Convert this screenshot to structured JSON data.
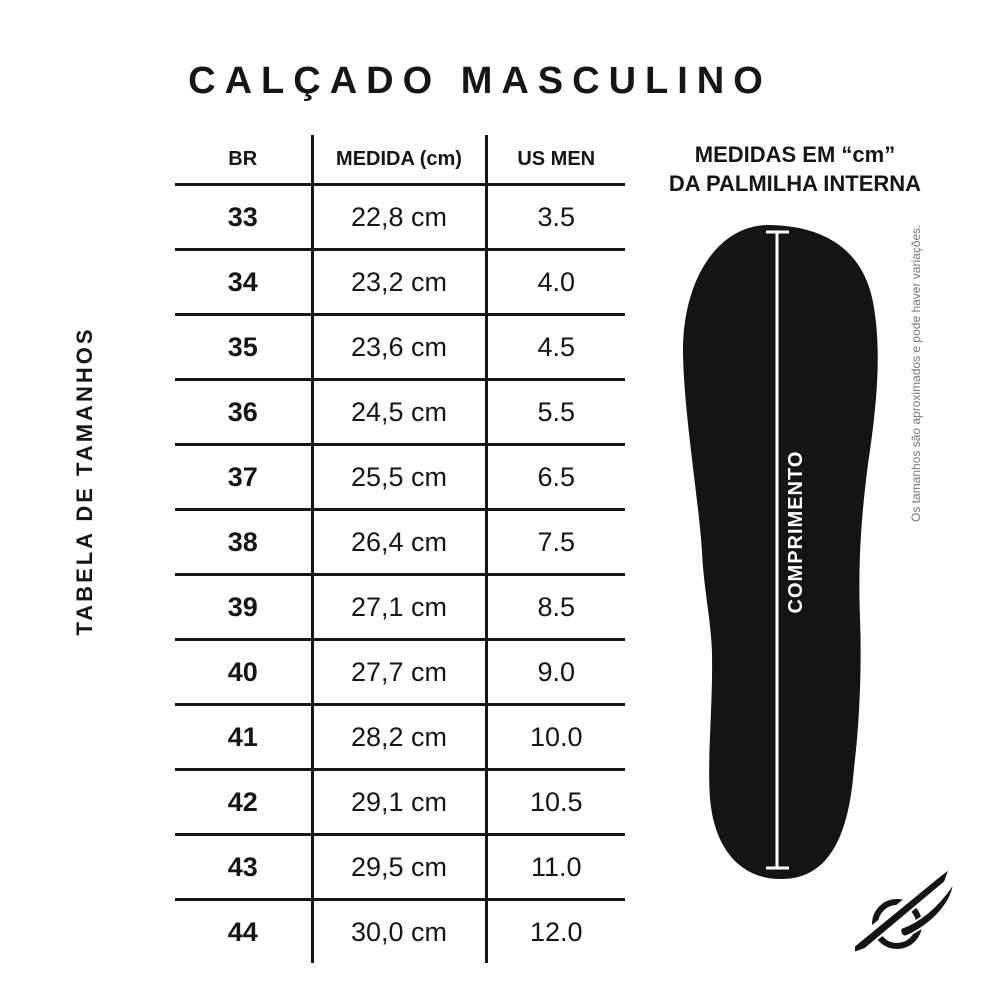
{
  "colors": {
    "ink": "#161616",
    "insole_black": "#141414",
    "note_gray": "#777777",
    "background": "#ffffff"
  },
  "title": "CALÇADO MASCULINO",
  "side_label": "TABELA DE TAMANHOS",
  "chart_data": {
    "type": "table",
    "title": "CALÇADO MASCULINO",
    "columns": [
      "BR",
      "MEDIDA (cm)",
      "US MEN"
    ],
    "rows": [
      [
        "33",
        "22,8 cm",
        "3.5"
      ],
      [
        "34",
        "23,2 cm",
        "4.0"
      ],
      [
        "35",
        "23,6 cm",
        "4.5"
      ],
      [
        "36",
        "24,5 cm",
        "5.5"
      ],
      [
        "37",
        "25,5 cm",
        "6.5"
      ],
      [
        "38",
        "26,4 cm",
        "7.5"
      ],
      [
        "39",
        "27,1 cm",
        "8.5"
      ],
      [
        "40",
        "27,7 cm",
        "9.0"
      ],
      [
        "41",
        "28,2 cm",
        "10.0"
      ],
      [
        "42",
        "29,1 cm",
        "10.5"
      ],
      [
        "43",
        "29,5 cm",
        "11.0"
      ],
      [
        "44",
        "30,0 cm",
        "12.0"
      ]
    ]
  },
  "insole_panel": {
    "heading_line1": "MEDIDAS EM “cm”",
    "heading_line2": "DA PALMILHA INTERNA",
    "length_label": "COMPRIMENTO",
    "note": "Os tamanhos são aproximados e pode haver variações."
  }
}
